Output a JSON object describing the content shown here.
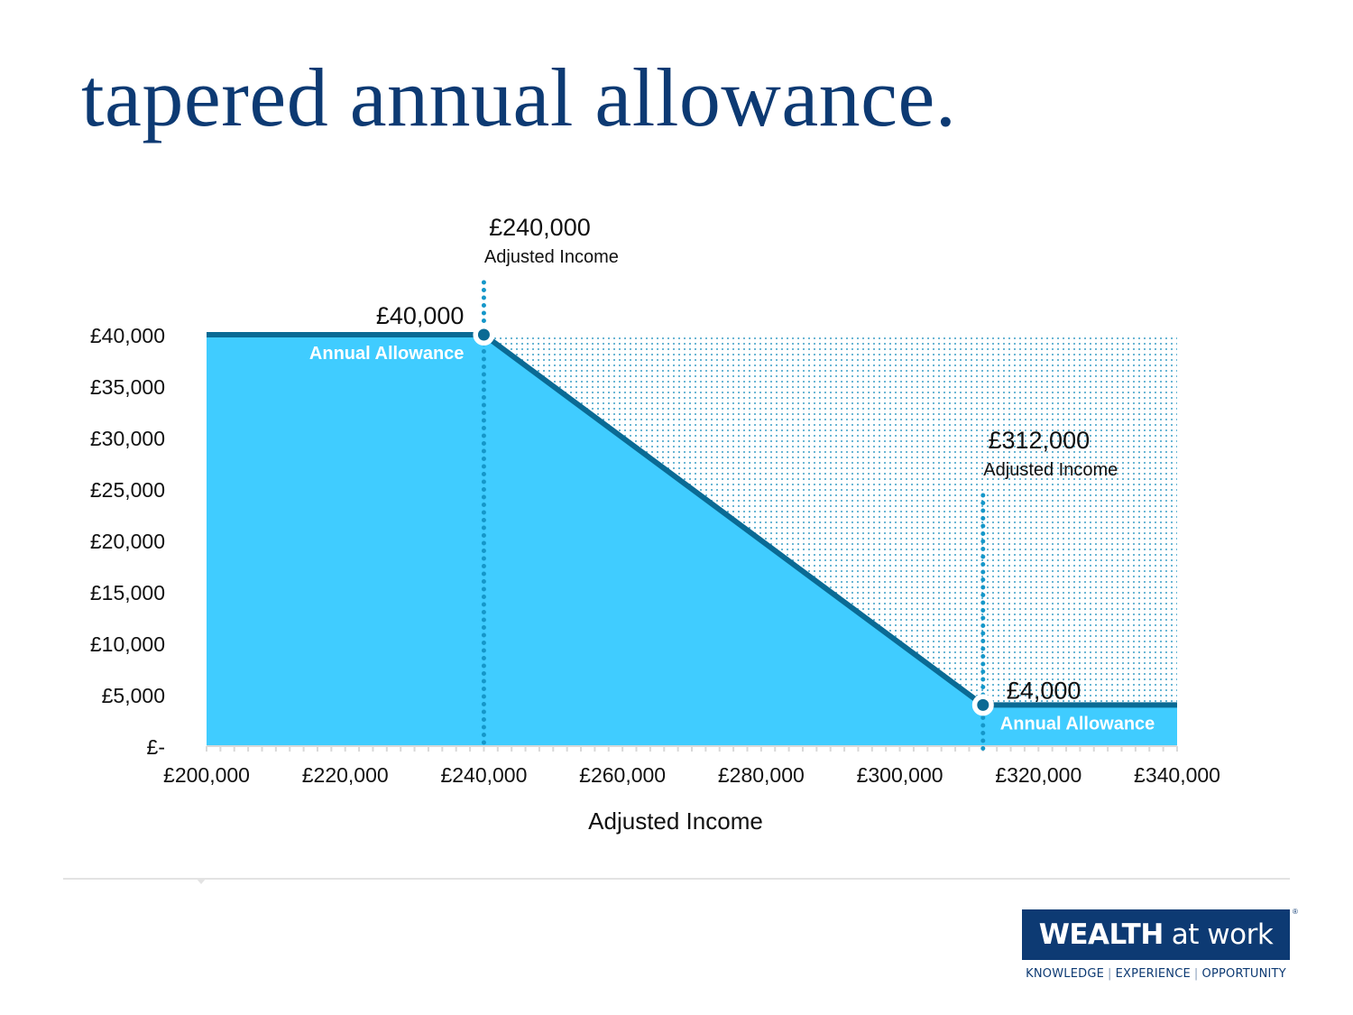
{
  "page": {
    "title": "tapered annual allowance."
  },
  "chart_data": {
    "type": "area",
    "title": "",
    "xlabel": "Adjusted Income",
    "ylabel": "",
    "xlim": [
      200000,
      340000
    ],
    "ylim": [
      0,
      40000
    ],
    "x_ticks": [
      200000,
      220000,
      240000,
      260000,
      280000,
      300000,
      320000,
      340000
    ],
    "x_tick_labels": [
      "£200,000",
      "£220,000",
      "£240,000",
      "£260,000",
      "£280,000",
      "£300,000",
      "£320,000",
      "£340,000"
    ],
    "y_ticks": [
      0,
      5000,
      10000,
      15000,
      20000,
      25000,
      30000,
      35000,
      40000
    ],
    "y_tick_labels": [
      "£-",
      "£5,000",
      "£10,000",
      "£15,000",
      "£20,000",
      "£25,000",
      "£30,000",
      "£35,000",
      "£40,000"
    ],
    "grid": false,
    "series": [
      {
        "x": [
          200000,
          240000,
          312000,
          340000
        ],
        "y": [
          40000,
          40000,
          4000,
          4000
        ]
      }
    ],
    "shaded_region": {
      "x": [
        240000,
        340000
      ],
      "y": [
        0,
        40000
      ],
      "pattern": "dots"
    },
    "reference_lines": [
      {
        "x": 240000,
        "value_label": "£240,000",
        "sub_label": "Adjusted Income"
      },
      {
        "x": 312000,
        "value_label": "£312,000",
        "sub_label": "Adjusted Income"
      }
    ],
    "markers": [
      {
        "x": 240000,
        "y": 40000,
        "value_label": "£40,000",
        "sub_label": "Annual Allowance"
      },
      {
        "x": 312000,
        "y": 4000,
        "value_label": "£4,000",
        "sub_label": "Annual Allowance"
      }
    ],
    "colors": {
      "fill": "#40ccff",
      "line": "#0a6a94",
      "reference_line": "#1597c9",
      "dots": "#3b9ec6",
      "axis": "#d9d9d9",
      "text": "#111111",
      "title": "#0d3a73"
    }
  },
  "footer": {
    "logo_bold": "WEALTH",
    "logo_light": "at work",
    "logo_mark": "®",
    "tagline": [
      "KNOWLEDGE",
      "EXPERIENCE",
      "OPPORTUNITY"
    ]
  }
}
